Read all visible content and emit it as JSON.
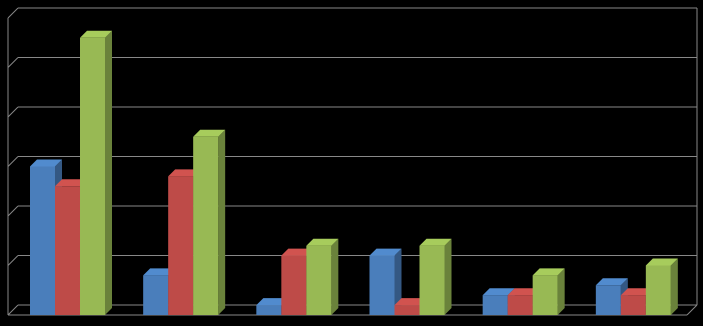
{
  "chart_data": {
    "type": "bar3d",
    "categories": [
      null,
      null,
      null,
      null,
      null,
      null
    ],
    "series": [
      {
        "color": "#4a7ebb",
        "values": [
          30,
          8,
          2,
          12,
          4,
          6
        ]
      },
      {
        "color": "#be4b48",
        "values": [
          26,
          28,
          12,
          2,
          4,
          4
        ]
      },
      {
        "color": "#98b954",
        "values": [
          56,
          36,
          14,
          14,
          8,
          10
        ]
      }
    ],
    "ylim": [
      0,
      60
    ],
    "yticks": [
      0,
      10,
      20,
      30,
      40,
      50,
      60
    ],
    "grid": true
  }
}
